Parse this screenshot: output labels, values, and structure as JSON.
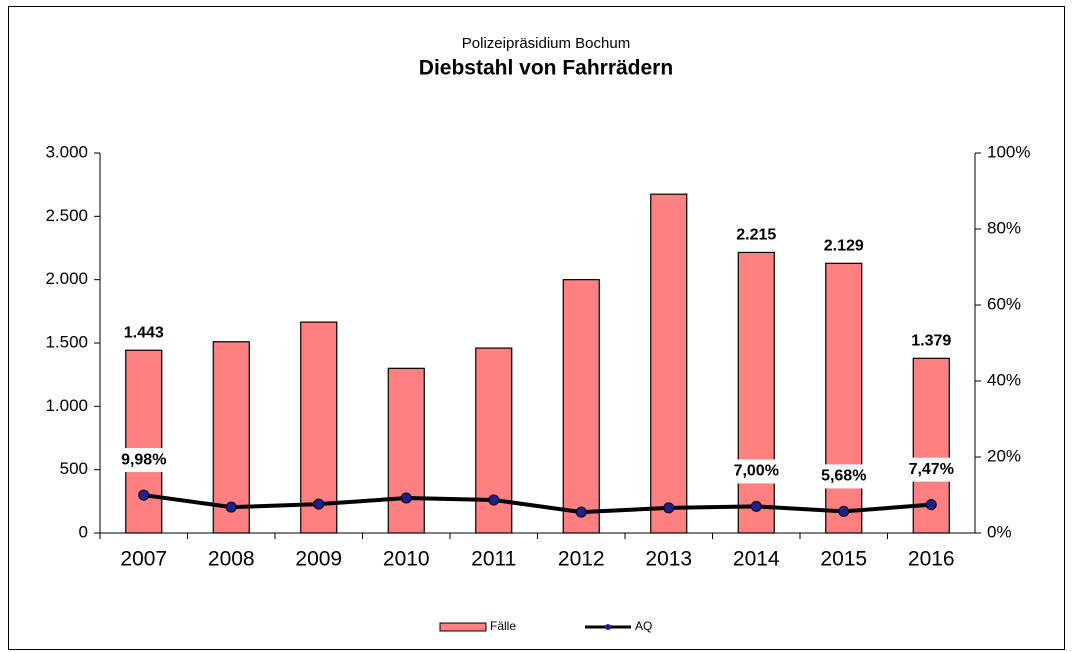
{
  "chart_data": {
    "type": "bar",
    "subtitle": "Polizeipräsidium Bochum",
    "title": "Diebstahl von Fahrrädern",
    "categories": [
      "2007",
      "2008",
      "2009",
      "2010",
      "2011",
      "2012",
      "2013",
      "2014",
      "2015",
      "2016"
    ],
    "series": [
      {
        "name": "Fälle",
        "type": "bar",
        "color": "#ff8080",
        "values": [
          1443,
          1510,
          1665,
          1300,
          1460,
          2000,
          2675,
          2215,
          2129,
          1379
        ],
        "value_labels": [
          "1.443",
          null,
          null,
          null,
          null,
          null,
          null,
          "2.215",
          "2.129",
          "1.379"
        ]
      },
      {
        "name": "AQ",
        "type": "line",
        "axis": "y2",
        "color": "#000000",
        "marker_color": "#1f1f8f",
        "values": [
          9.98,
          6.8,
          7.6,
          9.2,
          8.7,
          5.5,
          6.6,
          7.0,
          5.68,
          7.47
        ],
        "value_labels": [
          "9,98%",
          null,
          null,
          null,
          null,
          null,
          null,
          "7,00%",
          "5,68%",
          "7,47%"
        ]
      }
    ],
    "ylim": [
      0,
      3000
    ],
    "yticks": [
      0,
      {
        "value": 500,
        "label": "500"
      },
      {
        "value": 1000,
        "label": "1.000"
      },
      {
        "value": 1500,
        "label": "1.500"
      },
      {
        "value": 2000,
        "label": "2.000"
      },
      {
        "value": 2500,
        "label": "2.500"
      },
      {
        "value": 3000,
        "label": "3.000"
      }
    ],
    "y2lim": [
      0,
      100
    ],
    "y2ticks": [
      {
        "value": 0,
        "label": "0%"
      },
      {
        "value": 20,
        "label": "20%"
      },
      {
        "value": 40,
        "label": "40%"
      },
      {
        "value": 60,
        "label": "60%"
      },
      {
        "value": 80,
        "label": "80%"
      },
      {
        "value": 100,
        "label": "100%"
      }
    ],
    "legend": "bottom"
  }
}
